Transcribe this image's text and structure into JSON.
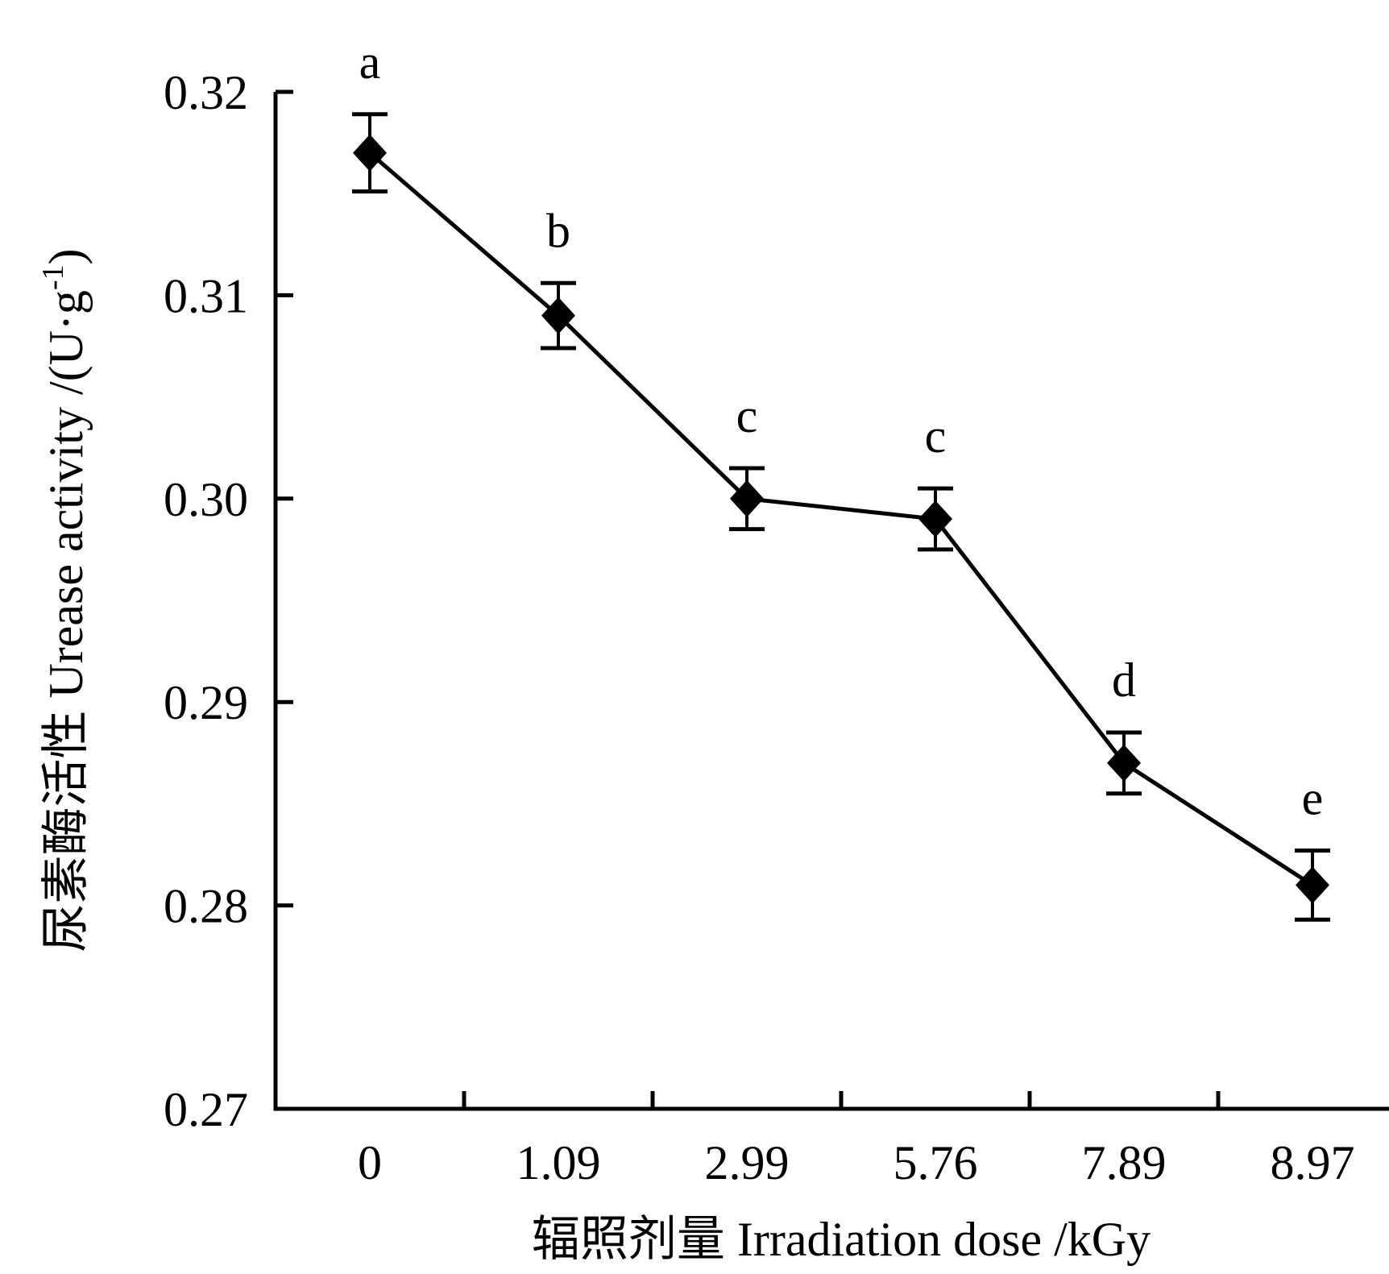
{
  "figure": {
    "background": "#ffffff",
    "ink_color": "#000000"
  },
  "chart_data": {
    "type": "line",
    "title": "",
    "x_categories": [
      "0",
      "1.09",
      "2.99",
      "5.76",
      "7.89",
      "8.97"
    ],
    "values": [
      0.317,
      0.309,
      0.3,
      0.299,
      0.287,
      0.281
    ],
    "errors": [
      0.0019,
      0.0016,
      0.0015,
      0.0015,
      0.0015,
      0.0017
    ],
    "point_labels": [
      "a",
      "b",
      "c",
      "c",
      "d",
      "e"
    ],
    "xlabel": "辐照剂量 Irradiation dose /kGy",
    "ylabel": "尿素酶活性 Urease activity /(U·g⁻¹)",
    "ylabel_parts": {
      "pre": "尿素酶活性 Urease activity /(U·g",
      "sup": "-1",
      "post": ")"
    },
    "y_ticks": [
      "0.32",
      "0.31",
      "0.30",
      "0.29",
      "0.28",
      "0.27"
    ],
    "ylim": [
      0.27,
      0.32
    ],
    "marker": "diamond",
    "line_color": "#000000",
    "grid": false,
    "legend": "none",
    "axis_tick_direction": "inward"
  }
}
